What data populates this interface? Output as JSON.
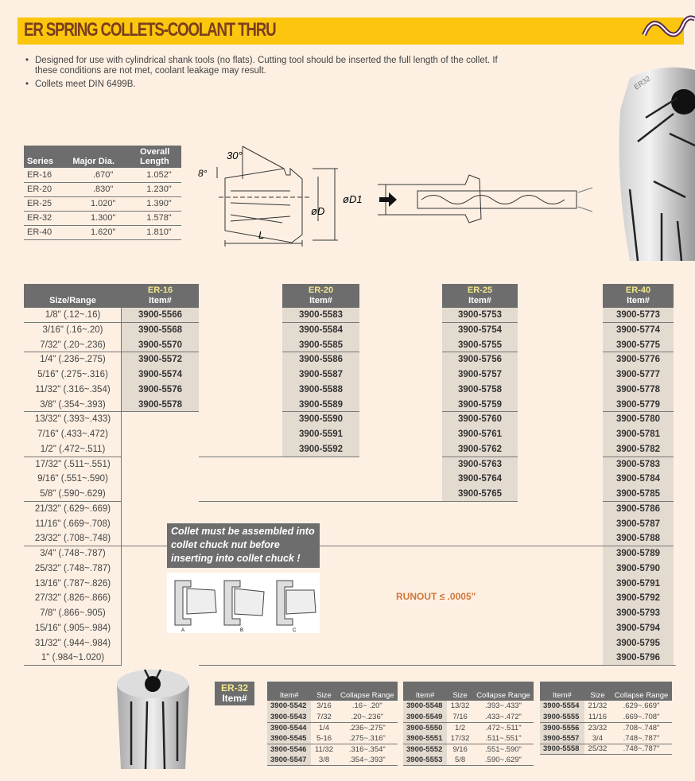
{
  "title": "ER SPRING COLLETS-COOLANT THRU",
  "bullets": [
    "Designed for use with cylindrical shank tools (no flats). Cutting tool should be inserted the full length of the collet. If these conditions are not met, coolant leakage may result.",
    "Collets meet DIN 6499B."
  ],
  "spec_table": {
    "headers": [
      "Series",
      "Major Dia.",
      "Overall Length"
    ],
    "rows": [
      [
        "ER-16",
        ".670\"",
        "1.052\""
      ],
      [
        "ER-20",
        ".830\"",
        "1.230\""
      ],
      [
        "ER-25",
        "1.020\"",
        "1.390\""
      ],
      [
        "ER-32",
        "1.300\"",
        "1.578\""
      ],
      [
        "ER-40",
        "1.620\"",
        "1.810\""
      ]
    ]
  },
  "diagram": {
    "angle": "30°",
    "taper": "8°",
    "d": "øD",
    "d1": "øD1",
    "length": "L"
  },
  "main_table": {
    "size_header": "Size/Range",
    "item_label": "Item#",
    "sizes": [
      "1/8\" (.12~.16)",
      "3/16\" (.16~.20)",
      "7/32\" (.20~.236)",
      "1/4\" (.236~.275)",
      "5/16\" (.275~.316)",
      "11/32\" (.316~.354)",
      "3/8\" (.354~.393)",
      "13/32\" (.393~.433)",
      "7/16\" (.433~.472)",
      "1/2\" (.472~.511)",
      "17/32\" (.511~.551)",
      "9/16\" (.551~.590)",
      "5/8\" (.590~.629)",
      "21/32\" (.629~.669)",
      "11/16\" (.669~.708)",
      "23/32\" (.708~.748)",
      "3/4\" (.748~.787)",
      "25/32\" (.748~.787)",
      "13/16\" (.787~.826)",
      "27/32\" (.826~.866)",
      "7/8\" (.866~.905)",
      "15/16\" (.905~.984)",
      "31/32\" (.944~.984)",
      "1\" (.984~1.020)"
    ],
    "series": [
      {
        "name": "ER-16",
        "items": [
          "3900-5566",
          "3900-5568",
          "3900-5570",
          "3900-5572",
          "3900-5574",
          "3900-5576",
          "3900-5578"
        ]
      },
      {
        "name": "ER-20",
        "items": [
          "3900-5583",
          "3900-5584",
          "3900-5585",
          "3900-5586",
          "3900-5587",
          "3900-5588",
          "3900-5589",
          "3900-5590",
          "3900-5591",
          "3900-5592"
        ]
      },
      {
        "name": "ER-25",
        "items": [
          "3900-5753",
          "3900-5754",
          "3900-5755",
          "3900-5756",
          "3900-5757",
          "3900-5758",
          "3900-5759",
          "3900-5760",
          "3900-5761",
          "3900-5762",
          "3900-5763",
          "3900-5764",
          "3900-5765"
        ]
      },
      {
        "name": "ER-40",
        "items": [
          "3900-5773",
          "3900-5774",
          "3900-5775",
          "3900-5776",
          "3900-5777",
          "3900-5778",
          "3900-5779",
          "3900-5780",
          "3900-5781",
          "3900-5782",
          "3900-5783",
          "3900-5784",
          "3900-5785",
          "3900-5786",
          "3900-5787",
          "3900-5788",
          "3900-5789",
          "3900-5790",
          "3900-5791",
          "3900-5792",
          "3900-5793",
          "3900-5794",
          "3900-5795",
          "3900-5796"
        ]
      }
    ]
  },
  "note": "Collet must be assembled into collet chuck nut before inserting into collet chuck !",
  "note_figure_labels": [
    "A",
    "B",
    "C"
  ],
  "runout": "RUNOUT ≤ .0005\"",
  "er32": {
    "series": "ER-32",
    "item_label": "Item#",
    "headers": [
      "Item#",
      "Size",
      "Collapse Range"
    ],
    "tables": [
      [
        [
          "3900-5542",
          "3/16",
          ".16~ .20\""
        ],
        [
          "3900-5543",
          "7/32",
          ".20~.236\""
        ],
        [
          "3900-5544",
          "1/4",
          ".236~.275\""
        ],
        [
          "3900-5545",
          "5-16",
          ".275~.316\""
        ],
        [
          "3900-5546",
          "11/32",
          ".316~.354\""
        ],
        [
          "3900-5547",
          "3/8",
          ".354~.393\""
        ]
      ],
      [
        [
          "3900-5548",
          "13/32",
          ".393~.433\""
        ],
        [
          "3900-5549",
          "7/16",
          ".433~.472\""
        ],
        [
          "3900-5550",
          "1/2",
          ".472~.511\""
        ],
        [
          "3900-5551",
          "17/32",
          ".511~.551\""
        ],
        [
          "3900-5552",
          "9/16",
          ".551~.590\""
        ],
        [
          "3900-5553",
          "5/8",
          ".590~.629\""
        ]
      ],
      [
        [
          "3900-5554",
          "21/32",
          ".629~.669\""
        ],
        [
          "3900-5555",
          "11/16",
          ".669~.708\""
        ],
        [
          "3900-5556",
          "23/32",
          ".708~.748\""
        ],
        [
          "3900-5557",
          "3/4",
          ".748~.787\""
        ],
        [
          "3900-5558",
          "25/32",
          ".748~.787\""
        ]
      ]
    ]
  },
  "colors": {
    "title_bar": "#fbc60d",
    "title_text": "#7a3e1e",
    "header_gray": "#6d6d6d",
    "series_label": "#f0e68c",
    "item_cell": "#e4dbd0",
    "runout": "#d2763a"
  }
}
